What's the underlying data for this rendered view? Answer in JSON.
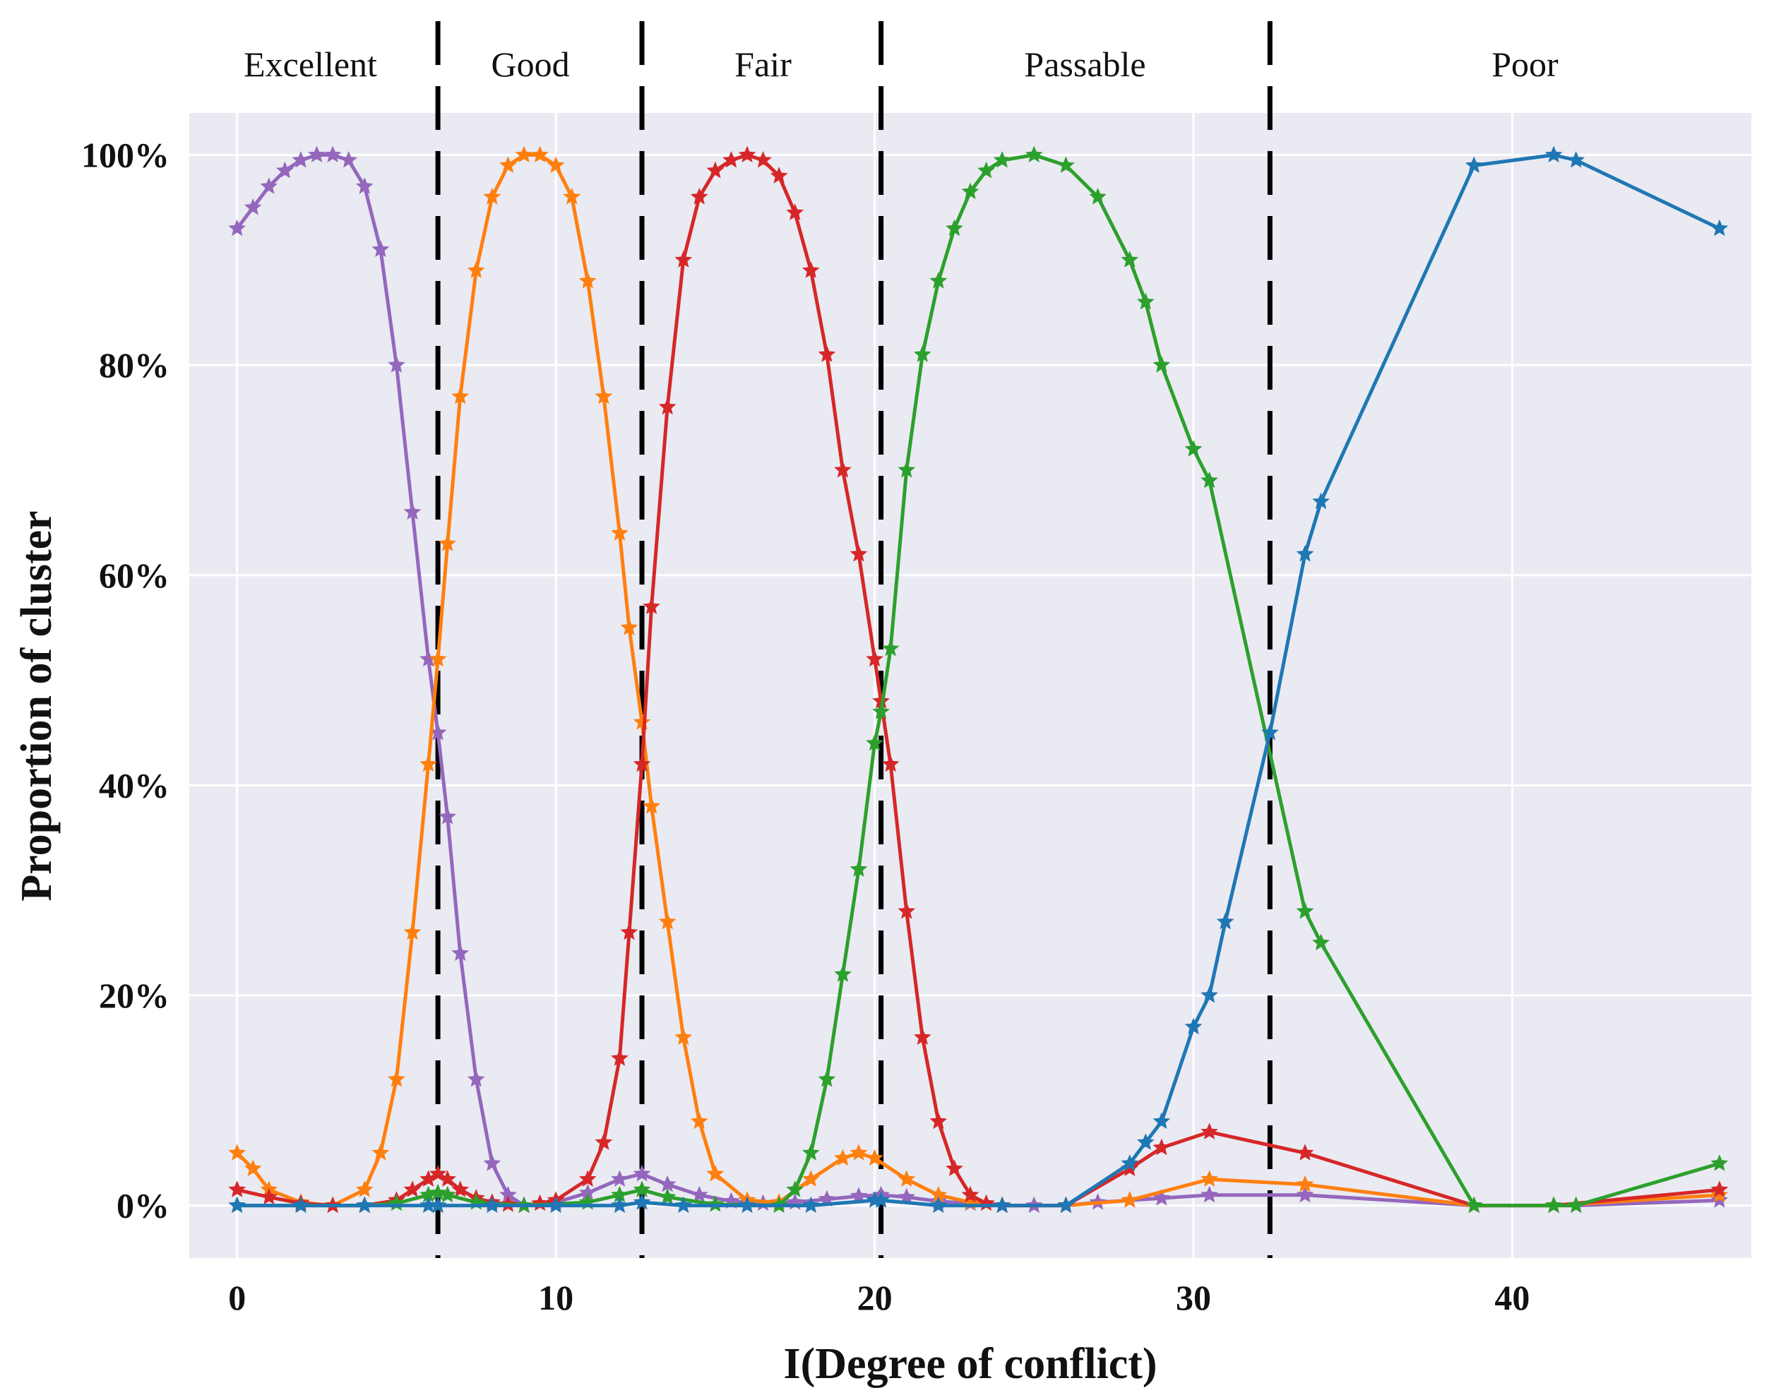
{
  "chart_data": {
    "type": "line",
    "title": "",
    "xlabel": "I(Degree of conflict)",
    "ylabel": "Proportion of cluster",
    "xlim": [
      -1.5,
      47.5
    ],
    "ylim": [
      -5,
      104
    ],
    "xticks": [
      0,
      10,
      20,
      30,
      40
    ],
    "xtick_labels": [
      "0",
      "10",
      "20",
      "30",
      "40"
    ],
    "yticks": [
      0,
      20,
      40,
      60,
      80,
      100
    ],
    "ytick_labels": [
      "0%",
      "20%",
      "40%",
      "60%",
      "80%",
      "100%"
    ],
    "grid": true,
    "dividers": [
      6.3,
      12.7,
      20.2,
      32.4
    ],
    "regions": [
      {
        "label": "Excellent",
        "x": 2.3
      },
      {
        "label": "Good",
        "x": 9.2
      },
      {
        "label": "Fair",
        "x": 16.5
      },
      {
        "label": "Passable",
        "x": 26.6
      },
      {
        "label": "Poor",
        "x": 40.4
      }
    ],
    "series": [
      {
        "name": "Excellent",
        "color": "#9467bd",
        "x": [
          0,
          0.5,
          1,
          1.5,
          2,
          2.5,
          3,
          3.5,
          4,
          4.5,
          5,
          5.5,
          6,
          6.3,
          6.6,
          7,
          7.5,
          8,
          8.5,
          9,
          10,
          11,
          12,
          12.7,
          13.5,
          14.5,
          15.5,
          16.5,
          17.5,
          18.5,
          19.5,
          20.2,
          21,
          22,
          23,
          24,
          25,
          26,
          27,
          28,
          29,
          30.5,
          33.5,
          38.8,
          41.3,
          42,
          46.5
        ],
        "values": [
          93,
          95,
          97,
          98.5,
          99.5,
          100,
          100,
          99.5,
          97,
          91,
          80,
          66,
          52,
          45,
          37,
          24,
          12,
          4,
          1,
          0,
          0.3,
          1.2,
          2.5,
          3,
          2,
          1,
          0.4,
          0.2,
          0.3,
          0.6,
          0.9,
          1,
          0.8,
          0.4,
          0.2,
          0,
          0,
          0,
          0.3,
          0.5,
          0.7,
          1,
          1,
          0,
          0,
          0,
          0.5
        ]
      },
      {
        "name": "Good",
        "color": "#ff7f0e",
        "x": [
          0,
          0.5,
          1,
          2,
          3,
          4,
          4.5,
          5,
          5.5,
          6,
          6.3,
          6.6,
          7,
          7.5,
          8,
          8.5,
          9,
          9.5,
          10,
          10.5,
          11,
          11.5,
          12,
          12.3,
          12.7,
          13,
          13.5,
          14,
          14.5,
          15,
          16,
          17,
          18,
          19,
          19.5,
          20,
          21,
          22,
          23,
          24,
          26,
          28,
          30.5,
          33.5,
          38.8,
          41.3,
          46.5
        ],
        "values": [
          5,
          3.5,
          1.5,
          0.3,
          0,
          1.5,
          5,
          12,
          26,
          42,
          52,
          63,
          77,
          89,
          96,
          99,
          100,
          100,
          99,
          96,
          88,
          77,
          64,
          55,
          46,
          38,
          27,
          16,
          8,
          3,
          0.5,
          0.3,
          2.5,
          4.5,
          5,
          4.5,
          2.5,
          1,
          0.3,
          0,
          0,
          0.5,
          2.5,
          2,
          0,
          0,
          1
        ]
      },
      {
        "name": "Fair",
        "color": "#d62728",
        "x": [
          0,
          1,
          2,
          3,
          4,
          5,
          5.5,
          6,
          6.3,
          6.6,
          7,
          7.5,
          8,
          8.5,
          9,
          9.5,
          10,
          11,
          11.5,
          12,
          12.3,
          12.7,
          13,
          13.5,
          14,
          14.5,
          15,
          15.5,
          16,
          16.5,
          17,
          17.5,
          18,
          18.5,
          19,
          19.5,
          20,
          20.2,
          20.5,
          21,
          21.5,
          22,
          22.5,
          23,
          23.5,
          24,
          26,
          28,
          29,
          30.5,
          33.5,
          38.8,
          41.3,
          46.5
        ],
        "values": [
          1.5,
          0.8,
          0.2,
          0,
          0,
          0.5,
          1.5,
          2.5,
          3,
          2.5,
          1.5,
          0.7,
          0.3,
          0.1,
          0,
          0.2,
          0.5,
          2.5,
          6,
          14,
          26,
          42,
          57,
          76,
          90,
          96,
          98.5,
          99.5,
          100,
          99.5,
          98,
          94.5,
          89,
          81,
          70,
          62,
          52,
          48,
          42,
          28,
          16,
          8,
          3.5,
          1,
          0.2,
          0,
          0,
          3.5,
          5.5,
          7,
          5,
          0,
          0,
          1.5
        ]
      },
      {
        "name": "Passable",
        "color": "#2ca02c",
        "x": [
          0,
          2,
          4,
          5,
          6,
          6.3,
          6.6,
          7.5,
          9,
          11,
          12,
          12.7,
          13.5,
          15,
          17,
          17.5,
          18,
          18.5,
          19,
          19.5,
          20,
          20.2,
          20.5,
          21,
          21.5,
          22,
          22.5,
          23,
          23.5,
          24,
          25,
          26,
          27,
          28,
          28.5,
          29,
          30,
          30.5,
          33.5,
          34,
          38.8,
          41.3,
          42,
          46.5
        ],
        "values": [
          0,
          0,
          0,
          0.2,
          1,
          1.2,
          1,
          0.3,
          0,
          0.3,
          1,
          1.5,
          0.8,
          0.1,
          0,
          1.5,
          5,
          12,
          22,
          32,
          44,
          47,
          53,
          70,
          81,
          88,
          93,
          96.5,
          98.5,
          99.5,
          100,
          99,
          96,
          90,
          86,
          80,
          72,
          69,
          28,
          25,
          0,
          0,
          0,
          4
        ]
      },
      {
        "name": "Poor",
        "color": "#1f77b4",
        "x": [
          0,
          2,
          4,
          6,
          6.3,
          8,
          10,
          12,
          12.7,
          14,
          16,
          18,
          20,
          20.2,
          22,
          24,
          26,
          28,
          28.5,
          29,
          30,
          30.5,
          31,
          32.4,
          33.5,
          34,
          38.8,
          41.3,
          42,
          46.5
        ],
        "values": [
          0,
          0,
          0,
          0,
          0,
          0,
          0,
          0,
          0.3,
          0,
          0,
          0,
          0.5,
          0.5,
          0,
          0,
          0,
          4,
          6,
          8,
          17,
          20,
          27,
          45,
          62,
          67,
          99,
          100,
          99.5,
          93
        ]
      }
    ]
  }
}
